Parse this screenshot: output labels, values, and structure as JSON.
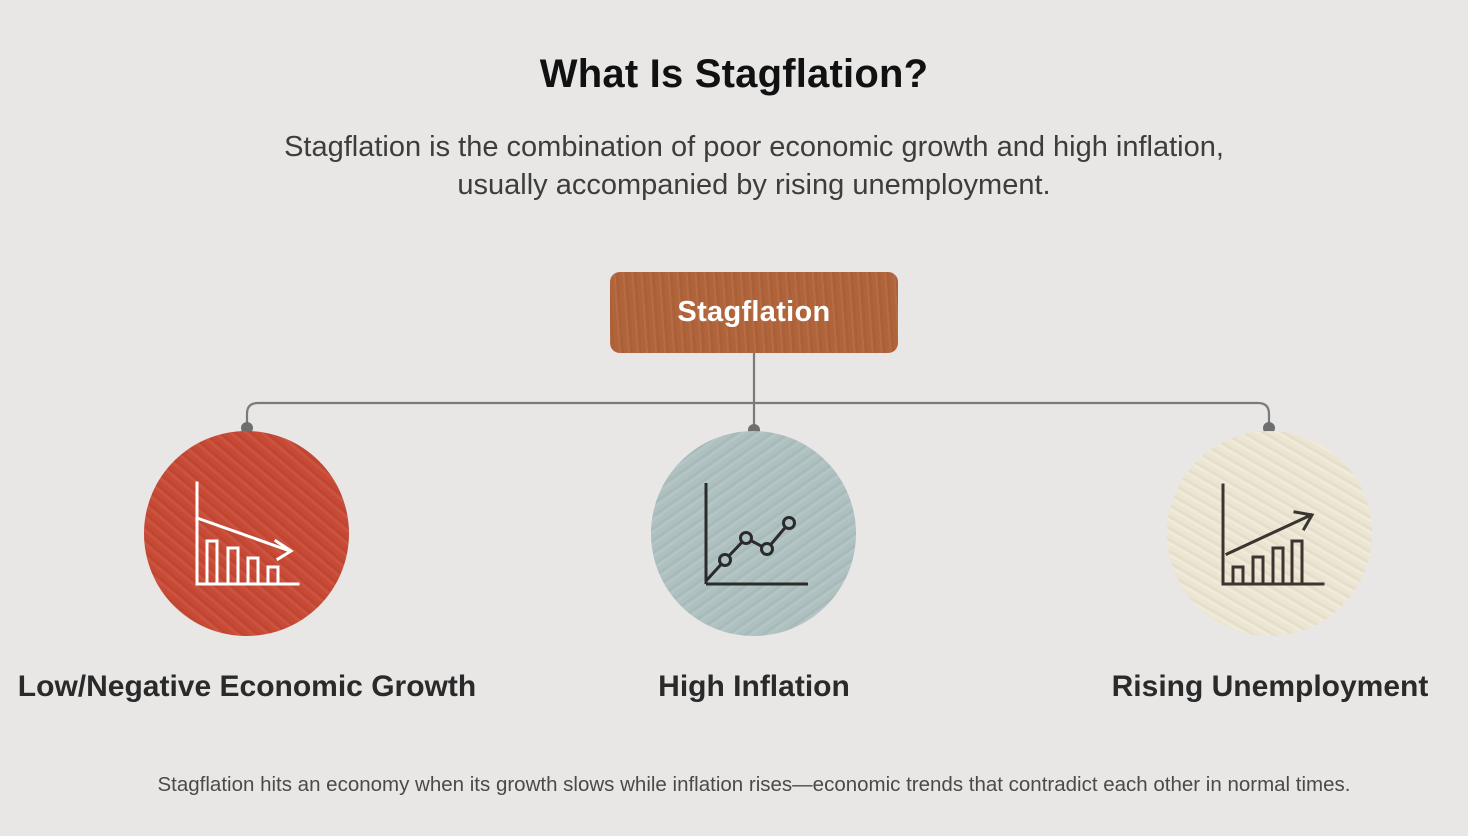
{
  "title": "What Is Stagflation?",
  "subtitle_lines": [
    "Stagflation is the combination of poor economic growth and high inflation,",
    "usually accompanied by rising unemployment."
  ],
  "root": {
    "label": "Stagflation",
    "color": "#b1643a"
  },
  "children": [
    {
      "label": "Low/Negative Economic Growth",
      "icon": "declining-bar-chart-icon",
      "color": "#c84a35"
    },
    {
      "label": "High Inflation",
      "icon": "rising-line-chart-icon",
      "color": "#aec0c0"
    },
    {
      "label": "Rising Unemployment",
      "icon": "rising-bar-chart-icon",
      "color": "#ece5d1"
    }
  ],
  "footnote": "Stagflation hits an economy when its growth slows while inflation rises—economic trends that contradict each other in normal times."
}
